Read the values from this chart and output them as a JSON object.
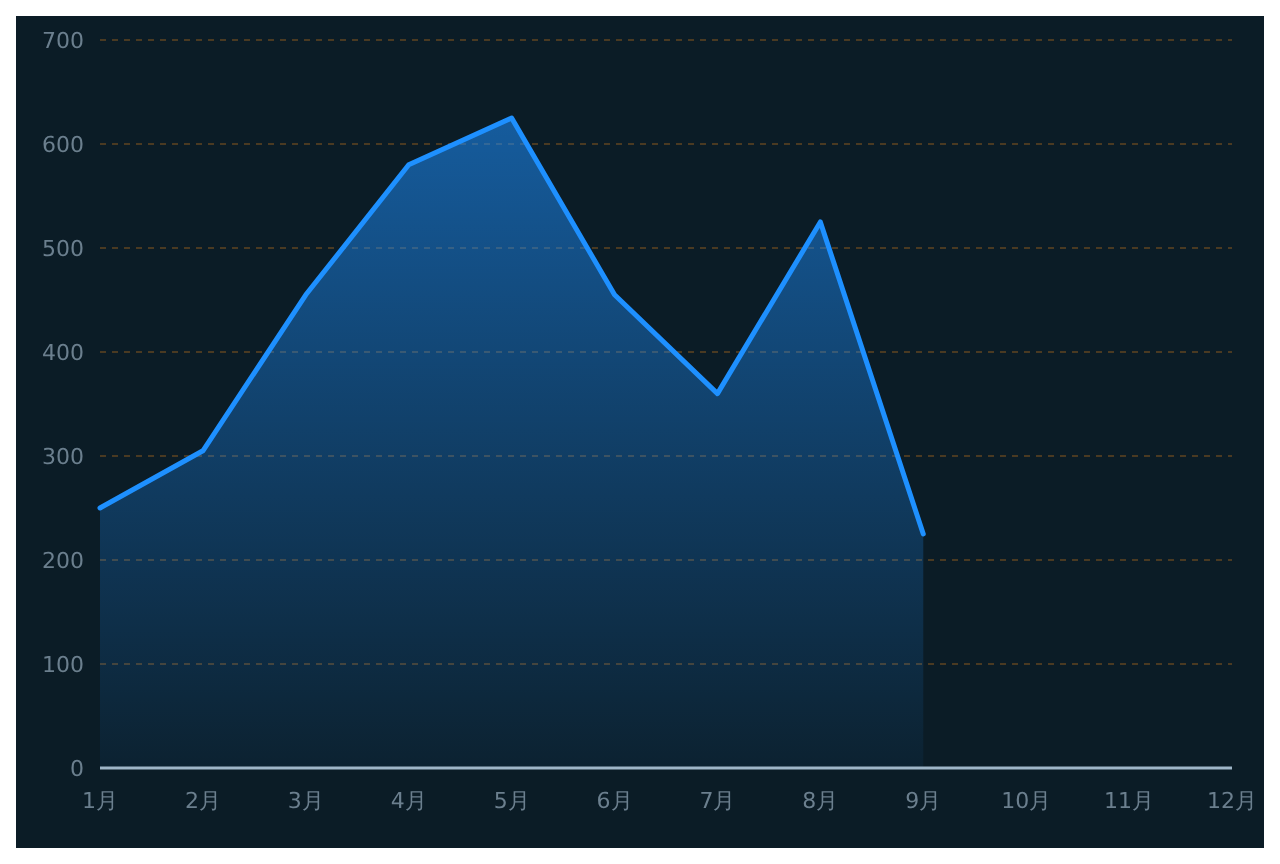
{
  "chart_data": {
    "type": "area",
    "categories": [
      "1月",
      "2月",
      "3月",
      "4月",
      "5月",
      "6月",
      "7月",
      "8月",
      "9月",
      "10月",
      "11月",
      "12月"
    ],
    "series": [
      {
        "color": "#1e90ff",
        "values": [
          250,
          305,
          455,
          580,
          625,
          455,
          360,
          525,
          225,
          null,
          null,
          null
        ]
      }
    ],
    "ylim": [
      0,
      700
    ],
    "yticks": [
      0,
      100,
      200,
      300,
      400,
      500,
      600,
      700
    ],
    "grid": "y",
    "line_style": "solid",
    "marker": "none"
  }
}
